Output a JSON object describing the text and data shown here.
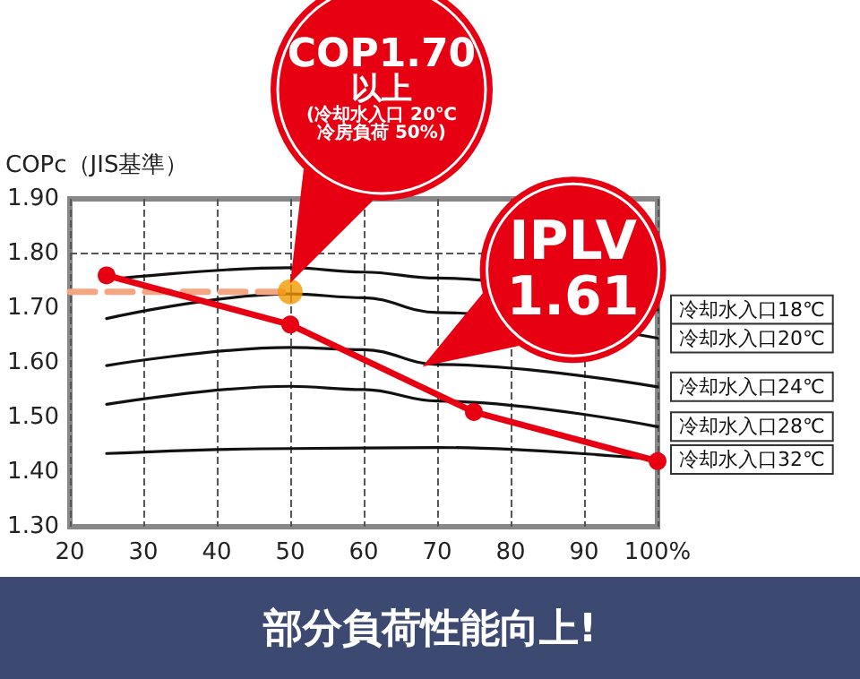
{
  "chart_data": {
    "type": "line",
    "ylabel": "COPc（JIS基準）",
    "xlim": [
      20,
      100
    ],
    "xticks": [
      20,
      30,
      40,
      50,
      60,
      70,
      80,
      90,
      {
        "value": 100,
        "label": "100%"
      }
    ],
    "ylim": [
      1.3,
      1.9
    ],
    "yticks": [
      {
        "value": 1.3,
        "label": "1.30"
      },
      {
        "value": 1.4,
        "label": "1.40"
      },
      {
        "value": 1.5,
        "label": "1.50"
      },
      {
        "value": 1.6,
        "label": "1.60"
      },
      {
        "value": 1.7,
        "label": "1.70"
      },
      {
        "value": 1.8,
        "label": "1.80"
      },
      {
        "value": 1.9,
        "label": "1.90"
      }
    ],
    "grid": "x",
    "marker": "none",
    "line_style": "solid",
    "ref_lines": [
      {
        "axis": "y",
        "value": 1.8,
        "color": "#555555",
        "line_style": "dashed"
      }
    ],
    "series": [
      {
        "name": "冷却水入口18℃",
        "color": "#111111",
        "x": [
          25,
          50,
          60,
          70,
          100
        ],
        "values": [
          1.752,
          1.774,
          1.766,
          1.755,
          1.697
        ]
      },
      {
        "name": "冷却水入口20℃",
        "color": "#111111",
        "x": [
          25,
          50,
          60,
          70,
          100
        ],
        "values": [
          1.681,
          1.726,
          1.719,
          1.692,
          1.645
        ]
      },
      {
        "name": "冷却水入口24℃",
        "color": "#111111",
        "x": [
          25,
          50,
          60,
          70,
          100
        ],
        "values": [
          1.595,
          1.628,
          1.624,
          1.597,
          1.556
        ]
      },
      {
        "name": "冷却水入口28℃",
        "color": "#111111",
        "x": [
          25,
          50,
          60,
          70,
          100
        ],
        "values": [
          1.524,
          1.557,
          1.551,
          1.53,
          1.483
        ]
      },
      {
        "name": "冷却水入口32℃",
        "color": "#111111",
        "x": [
          25,
          50,
          70,
          100
        ],
        "values": [
          1.434,
          1.443,
          1.445,
          1.423
        ]
      },
      {
        "type": "line",
        "color": "#f4a582",
        "line_style": "dashed",
        "marker": "none",
        "x": [
          20,
          50
        ],
        "values": [
          1.73,
          1.73
        ]
      },
      {
        "color": "#e60012",
        "marker": "circle",
        "x": [
          25,
          50,
          75,
          100
        ],
        "values": [
          1.76,
          1.67,
          1.51,
          1.42
        ]
      },
      {
        "type": "scatter",
        "color": "#f39800",
        "marker": "circle",
        "x": [
          50
        ],
        "values": [
          1.73
        ]
      }
    ],
    "annotations": [
      "COP1.70\n以上\n(冷却水入口 20℃\n冷房負荷 50%)",
      {
        "text": "IPLV\n1.61",
        "x": 68,
        "y": 1.58
      },
      "部分負荷性能向上!"
    ]
  }
}
